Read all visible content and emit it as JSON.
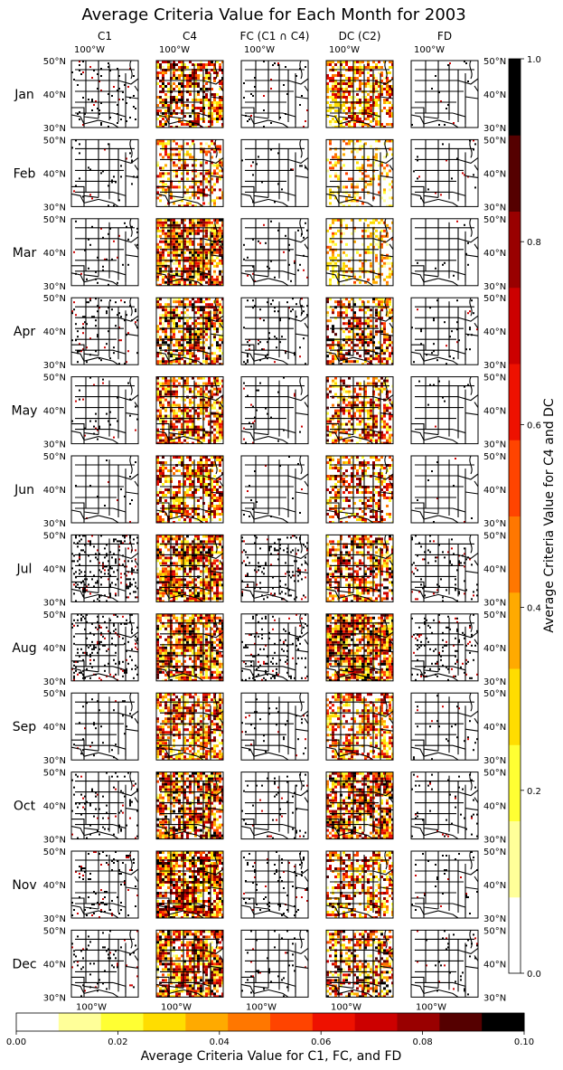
{
  "chart_data": {
    "type": "heatmap",
    "title": "Average Criteria Value for Each Month for 2003",
    "columns": [
      "C1",
      "C4",
      "FC (C1 ∩ C4)",
      "DC (C2)",
      "FD"
    ],
    "rows": [
      "Jan",
      "Feb",
      "Mar",
      "Apr",
      "May",
      "Jun",
      "Jul",
      "Aug",
      "Sep",
      "Oct",
      "Nov",
      "Dec"
    ],
    "lon_tick_label": "100°W",
    "lat_tick_labels": [
      "50°N",
      "40°N",
      "30°N"
    ],
    "vertical_colorbar": {
      "label": "Average Criteria Value for C4 and DC",
      "range": [
        0.0,
        1.0
      ],
      "tick_values": [
        0.0,
        0.2,
        0.4,
        0.6,
        0.8,
        1.0
      ],
      "tick_labels": [
        "0.0",
        "0.2",
        "0.4",
        "0.6",
        "0.8",
        "1.0"
      ]
    },
    "horizontal_colorbar": {
      "label": "Average Criteria Value for C1, FC, and FD",
      "range": [
        0.0,
        0.1
      ],
      "tick_values": [
        0.0,
        0.02,
        0.04,
        0.06,
        0.08,
        0.1
      ],
      "tick_labels": [
        "0.00",
        "0.02",
        "0.04",
        "0.06",
        "0.08",
        "0.10"
      ]
    },
    "colormap": [
      "#ffffff",
      "#ffff99",
      "#ffff33",
      "#ffdd00",
      "#ffaa00",
      "#ff7700",
      "#ff4400",
      "#ee1100",
      "#cc0000",
      "#990000",
      "#550000",
      "#000000"
    ]
  }
}
